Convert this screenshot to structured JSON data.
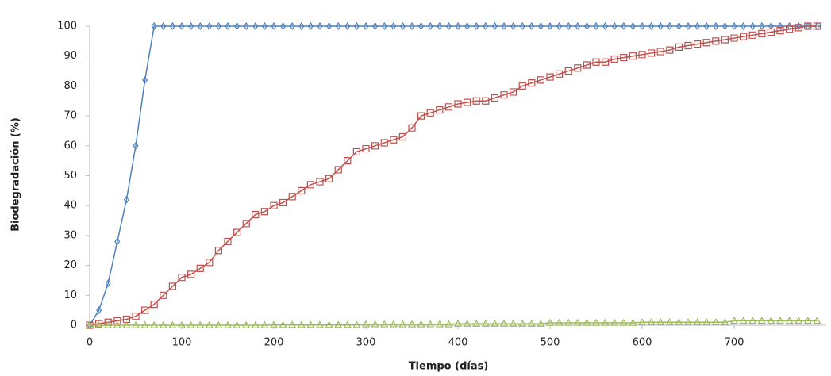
{
  "chart_data": {
    "type": "line",
    "xlabel": "Tiempo (días)",
    "ylabel": "Biodegradación (%)",
    "x": [
      0,
      10,
      20,
      30,
      40,
      50,
      60,
      70,
      80,
      90,
      100,
      110,
      120,
      130,
      140,
      150,
      160,
      170,
      180,
      190,
      200,
      210,
      220,
      230,
      240,
      250,
      260,
      270,
      280,
      290,
      300,
      310,
      320,
      330,
      340,
      350,
      360,
      370,
      380,
      390,
      400,
      410,
      420,
      430,
      440,
      450,
      460,
      470,
      480,
      490,
      500,
      510,
      520,
      530,
      540,
      550,
      560,
      570,
      580,
      590,
      600,
      610,
      620,
      630,
      640,
      650,
      660,
      670,
      680,
      690,
      700,
      710,
      720,
      730,
      740,
      750,
      760,
      770,
      780,
      790
    ],
    "series": [
      {
        "color": "#4f81bd",
        "marker": "diamond",
        "values": [
          0,
          5,
          14,
          28,
          42,
          60,
          82,
          100,
          100,
          100,
          100,
          100,
          100,
          100,
          100,
          100,
          100,
          100,
          100,
          100,
          100,
          100,
          100,
          100,
          100,
          100,
          100,
          100,
          100,
          100,
          100,
          100,
          100,
          100,
          100,
          100,
          100,
          100,
          100,
          100,
          100,
          100,
          100,
          100,
          100,
          100,
          100,
          100,
          100,
          100,
          100,
          100,
          100,
          100,
          100,
          100,
          100,
          100,
          100,
          100,
          100,
          100,
          100,
          100,
          100,
          100,
          100,
          100,
          100,
          100,
          100,
          100,
          100,
          100,
          100,
          100,
          100,
          100,
          100,
          100
        ]
      },
      {
        "color": "#c0504d",
        "marker": "square",
        "values": [
          0,
          0.5,
          1,
          1.5,
          2,
          3,
          5,
          7,
          10,
          13,
          16,
          17,
          19,
          21,
          25,
          28,
          31,
          34,
          37,
          38,
          40,
          41,
          43,
          45,
          47,
          48,
          49,
          52,
          55,
          58,
          59,
          60,
          61,
          62,
          63,
          66,
          70,
          71,
          72,
          73,
          74,
          74.5,
          75,
          75,
          76,
          77,
          78,
          80,
          81,
          82,
          83,
          84,
          85,
          86,
          87,
          88,
          88,
          89,
          89.5,
          90,
          90.5,
          91,
          91.5,
          92,
          93,
          93.5,
          94,
          94.5,
          95,
          95.5,
          96,
          96.5,
          97,
          97.5,
          98,
          98.5,
          99,
          99.5,
          100,
          100
        ]
      },
      {
        "color": "#9bbb59",
        "marker": "triangle",
        "values": [
          0,
          0,
          0,
          0,
          0,
          0,
          0,
          0,
          0,
          0,
          0,
          0,
          0,
          0,
          0,
          0,
          0,
          0,
          0,
          0,
          0.1,
          0.1,
          0.1,
          0.1,
          0.1,
          0.1,
          0.1,
          0.1,
          0.1,
          0.1,
          0.3,
          0.3,
          0.3,
          0.3,
          0.3,
          0.3,
          0.3,
          0.3,
          0.3,
          0.3,
          0.5,
          0.5,
          0.5,
          0.5,
          0.5,
          0.5,
          0.5,
          0.5,
          0.5,
          0.5,
          0.8,
          0.8,
          0.8,
          0.8,
          0.8,
          0.8,
          0.8,
          0.8,
          0.8,
          0.8,
          1,
          1,
          1,
          1,
          1,
          1,
          1,
          1,
          1,
          1,
          1.5,
          1.5,
          1.5,
          1.5,
          1.5,
          1.5,
          1.5,
          1.5,
          1.5,
          1.5
        ]
      }
    ],
    "xlim": [
      0,
      800
    ],
    "xticks": [
      0,
      100,
      200,
      300,
      400,
      500,
      600,
      700
    ],
    "ylim": [
      0,
      100
    ],
    "yticks": [
      0,
      10,
      20,
      30,
      40,
      50,
      60,
      70,
      80,
      90,
      100
    ],
    "grid": false
  }
}
